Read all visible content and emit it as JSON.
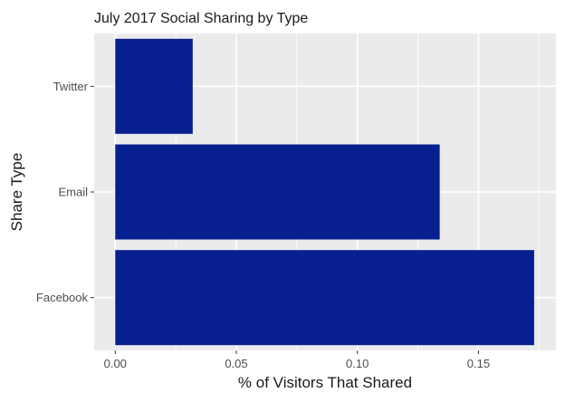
{
  "chart_data": {
    "type": "bar",
    "orientation": "horizontal",
    "title": "July 2017 Social Sharing by Type",
    "xlabel": "% of Visitors That Shared",
    "ylabel": "Share Type",
    "categories": [
      "Facebook",
      "Email",
      "Twitter"
    ],
    "values": [
      0.173,
      0.134,
      0.032
    ],
    "xlim": [
      -0.0087,
      0.182
    ],
    "xticks": [
      0.0,
      0.05,
      0.1,
      0.15
    ],
    "xtick_labels": [
      "0.00",
      "0.05",
      "0.10",
      "0.15"
    ],
    "bar_color": "#08208f",
    "panel_background": "#ebebeb",
    "grid": true,
    "legend": "none"
  }
}
